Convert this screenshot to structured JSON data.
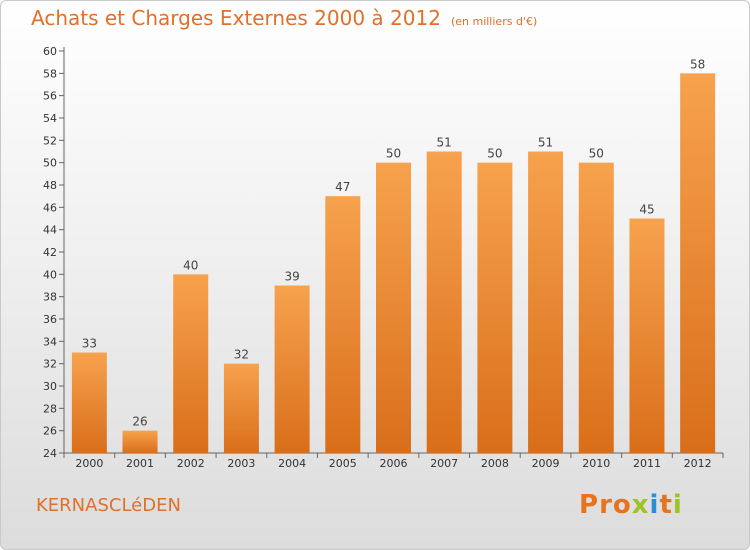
{
  "header": {
    "title": "Achats et Charges Externes 2000 à 2012",
    "unit": "(en milliers d'€)"
  },
  "footer": {
    "place": "KERNASCLéDEN",
    "logo_letters": [
      "P",
      "r",
      "o",
      "x",
      "i",
      "t",
      "i"
    ],
    "logo_colors": [
      "#e8731c",
      "#e8731c",
      "#e8731c",
      "#9bc424",
      "#2a8fd6",
      "#e8731c",
      "#9bc424"
    ]
  },
  "chart_data": {
    "type": "bar",
    "categories": [
      "2000",
      "2001",
      "2002",
      "2003",
      "2004",
      "2005",
      "2006",
      "2007",
      "2008",
      "2009",
      "2010",
      "2011",
      "2012"
    ],
    "values": [
      33,
      26,
      40,
      32,
      39,
      47,
      50,
      51,
      50,
      51,
      50,
      45,
      58
    ],
    "data_labels": [
      "33",
      "26",
      "40",
      "32",
      "39",
      "47",
      "50",
      "51",
      "50",
      "51",
      "50",
      "45",
      "58"
    ],
    "title": "Achats et Charges Externes 2000 à 2012",
    "xlabel": "",
    "ylabel": "",
    "ylim": [
      24,
      60
    ],
    "yticks": [
      "24",
      "26",
      "28",
      "30",
      "32",
      "34",
      "36",
      "38",
      "40",
      "42",
      "44",
      "46",
      "48",
      "50",
      "52",
      "54",
      "56",
      "58",
      "60"
    ],
    "grid": false,
    "bar_color": "#f0902e"
  }
}
